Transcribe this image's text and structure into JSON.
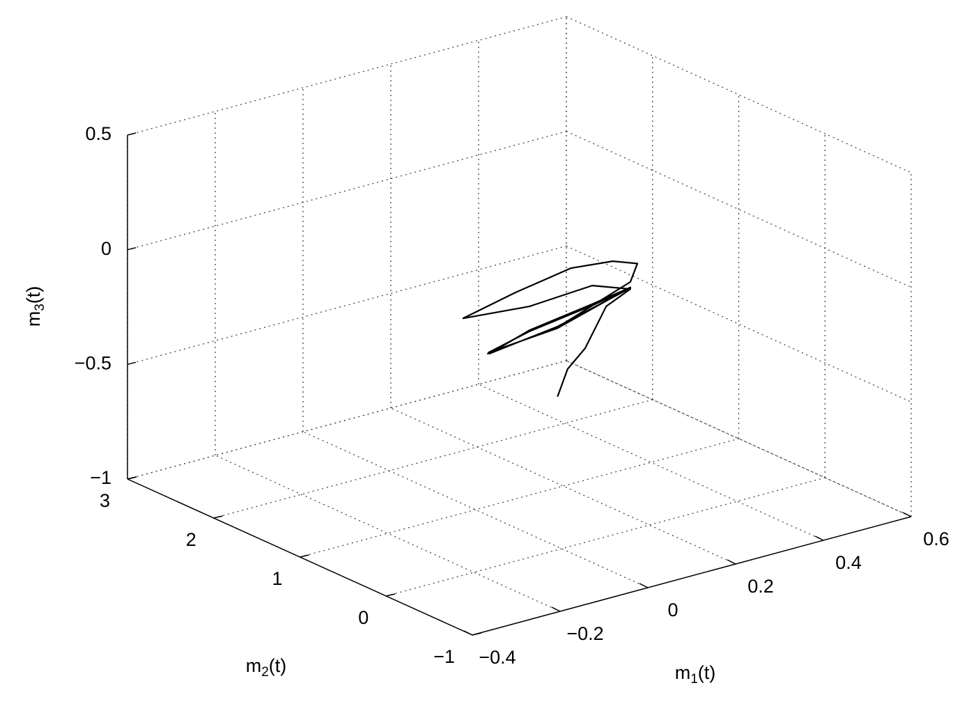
{
  "chart_data": {
    "type": "line3d",
    "xlabel": [
      "m",
      "1",
      "(t)"
    ],
    "ylabel": [
      "m",
      "2",
      "(t)"
    ],
    "zlabel": [
      "m",
      "3",
      "(t)"
    ],
    "xlim": [
      -0.4,
      0.6
    ],
    "ylim": [
      -1,
      3
    ],
    "zlim": [
      -1,
      0.5
    ],
    "xticks": [
      {
        "value": -0.4,
        "label": "−0.4"
      },
      {
        "value": -0.2,
        "label": "−0.2"
      },
      0,
      0.2,
      0.4,
      0.6
    ],
    "yticks": [
      {
        "value": -1,
        "label": "−1"
      },
      0,
      1,
      2,
      3
    ],
    "zticks": [
      {
        "value": -1,
        "label": "−1"
      },
      {
        "value": -0.5,
        "label": "−0.5"
      },
      0,
      0.5
    ],
    "grid": true,
    "series": [
      {
        "color": "#000000",
        "x": [
          0.187,
          0.21,
          0.25,
          0.298,
          0.353,
          0.266,
          0.123,
          -0.028,
          0.091,
          0.218,
          0.313,
          0.369,
          0.353,
          0.187,
          0.028,
          0.123,
          0.266,
          0.353,
          0.187,
          0.03,
          0.123,
          0.266,
          0.353,
          0.187,
          0.032,
          0.123,
          0.266,
          0.35
        ],
        "y": [
          1,
          1,
          1,
          1,
          1,
          1,
          1,
          1,
          1,
          1,
          1,
          1,
          1,
          1,
          1,
          1,
          1,
          1,
          1,
          1,
          1,
          1,
          1,
          1,
          1,
          1,
          1,
          1
        ],
        "z": [
          -0.604,
          -0.495,
          -0.425,
          -0.267,
          -0.22,
          -0.16,
          -0.177,
          -0.151,
          -0.1,
          -0.059,
          -0.078,
          -0.117,
          -0.189,
          -0.301,
          -0.334,
          -0.283,
          -0.244,
          -0.213,
          -0.305,
          -0.33,
          -0.286,
          -0.247,
          -0.216,
          -0.298,
          -0.336,
          -0.281,
          -0.241,
          -0.214
        ]
      }
    ]
  }
}
